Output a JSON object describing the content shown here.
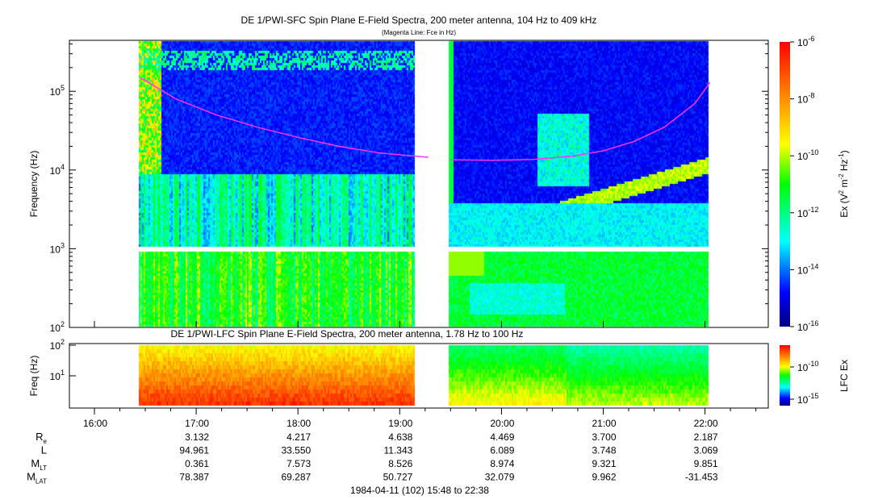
{
  "chart_data": [
    {
      "type": "heatmap",
      "title": "DE 1/PWI-SFC  Spin Plane E-Field Spectra, 200 meter antenna, 104 Hz to 409 kHz",
      "subtitle": "(Magenta Line: Fce in Hz)",
      "ylabel": "Frequency (Hz)",
      "yscale": "log",
      "ylim": [
        100,
        409000
      ],
      "yticks": [
        {
          "v": 100,
          "e": "2"
        },
        {
          "v": 1000,
          "e": "3"
        },
        {
          "v": 10000,
          "e": "4"
        },
        {
          "v": 100000,
          "e": "5"
        }
      ],
      "xlim_hours": [
        15.8,
        22.633
      ],
      "data_gaps_hours": [
        [
          15.8,
          16.45
        ],
        [
          19.28,
          19.5
        ],
        [
          22.05,
          22.633
        ]
      ],
      "fce_line_hz": {
        "x_hours": [
          16.45,
          16.8,
          17.2,
          17.6,
          18.0,
          18.4,
          18.8,
          19.28,
          19.5,
          19.9,
          20.3,
          20.7,
          21.0,
          21.3,
          21.6,
          21.9,
          22.05
        ],
        "y": [
          150000,
          80000,
          50000,
          35000,
          26000,
          20000,
          16500,
          14500,
          13500,
          13300,
          13600,
          15000,
          17500,
          23000,
          35000,
          70000,
          130000
        ]
      },
      "colorbar": {
        "label": "Ex (V² m⁻² Hz⁻¹)",
        "label_main": "Ex (V",
        "range_exp": [
          -16,
          -6
        ],
        "ticks": [
          "-6",
          "-8",
          "-10",
          "-12",
          "-14",
          "-16"
        ]
      }
    },
    {
      "type": "heatmap",
      "title": "DE 1/PWI-LFC  Spin Plane E-Field Spectra, 200 meter antenna, 1.78 Hz to 100 Hz",
      "ylabel": "Freq (Hz)",
      "yscale": "log",
      "ylim": [
        1.78,
        100
      ],
      "yticks": [
        {
          "v": 100,
          "e": "2"
        },
        {
          "v": 10,
          "e": "1"
        }
      ],
      "colorbar": {
        "label": "LFC Ex",
        "ticks": [
          "-10",
          "-15"
        ]
      }
    }
  ],
  "time_axis": {
    "ticks": [
      "16:00",
      "17:00",
      "18:00",
      "19:00",
      "20:00",
      "21:00",
      "22:00"
    ]
  },
  "ephemeris": {
    "rows": [
      {
        "label": "R",
        "sub": "e",
        "values": [
          "",
          "3.132",
          "4.217",
          "4.638",
          "4.469",
          "3.700",
          "2.187"
        ]
      },
      {
        "label": "L",
        "sub": "",
        "values": [
          "",
          "94.961",
          "33.550",
          "11.343",
          "6.089",
          "3.748",
          "3.069"
        ]
      },
      {
        "label": "M",
        "sub": "LT",
        "values": [
          "",
          "0.361",
          "7.573",
          "8.526",
          "8.974",
          "9.321",
          "9.851"
        ]
      },
      {
        "label": "M",
        "sub": "LAT",
        "values": [
          "",
          "78.387",
          "69.287",
          "50.727",
          "32.079",
          "9.962",
          "-31.453"
        ]
      }
    ]
  },
  "footer": "1984-04-11 (102) 15:48 to 22:38",
  "colors": {
    "fce_line": "#ff33ff"
  }
}
